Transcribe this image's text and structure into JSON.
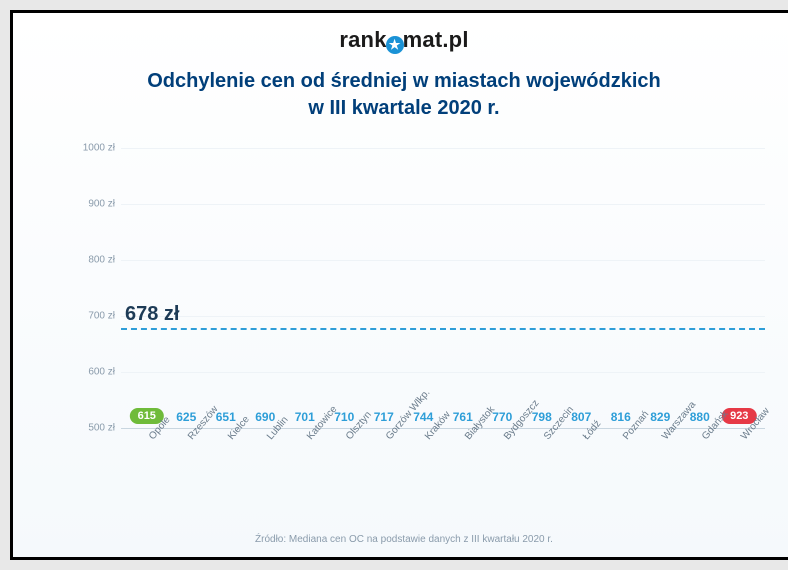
{
  "logo": {
    "pre": "rank",
    "post": "mat.pl",
    "star": "★"
  },
  "title_l1": "Odchylenie cen od średniej w miastach wojewódzkich",
  "title_l2": "w III kwartale 2020 r.",
  "footer": "Źródło: Mediana cen OC na podstawie danych z III kwartału 2020 r.",
  "chart": {
    "type": "bar",
    "ylim": [
      500,
      1000
    ],
    "ytick_step": 100,
    "y_unit": "zł",
    "average": {
      "value": 678,
      "label": "678 zł"
    },
    "categories": [
      "Opole",
      "Rzeszów",
      "Kielce",
      "Lublin",
      "Katowice",
      "Olsztyn",
      "Gorzów Wlkp.",
      "Kraków",
      "Białystok",
      "Bydgoszcz",
      "Szczecin",
      "Łódź",
      "Poznań",
      "Warszawa",
      "Gdańsk",
      "Wrocław"
    ],
    "values": [
      615,
      625,
      651,
      690,
      701,
      710,
      717,
      744,
      761,
      770,
      798,
      807,
      816,
      829,
      880,
      923
    ],
    "bar_color_top": "#3bb4ea",
    "bar_color_bottom": "#1a92d6",
    "value_label_color": "#2e9ed8",
    "min_pill_color": "#6fbb3a",
    "max_pill_color": "#e63946",
    "grid_color": "#eef3f7",
    "axis_color": "#c9d6e0",
    "tick_label_color": "#8a9bab",
    "background_gradient": [
      "#ffffff",
      "#f5f9fc"
    ],
    "title_color": "#013f7a",
    "title_fontsize": 20,
    "value_fontsize": 12,
    "tick_fontsize": 10,
    "avg_line_style": "dashed",
    "avg_line_color": "#2e9ed8",
    "bar_width_ratio": 0.72
  }
}
